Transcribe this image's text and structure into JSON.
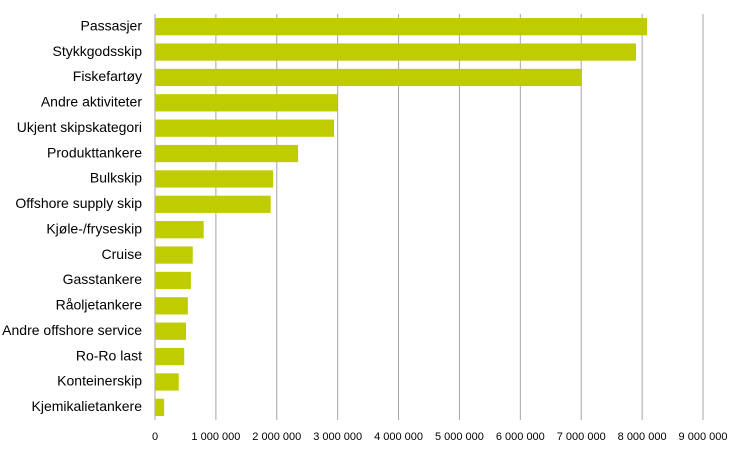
{
  "chart_data": {
    "type": "bar",
    "orientation": "horizontal",
    "categories": [
      "Passasjer",
      "Stykkgodsskip",
      "Fiskefartøy",
      "Andre aktiviteter",
      "Ukjent skipskategori",
      "Produkttankere",
      "Bulkskip",
      "Offshore supply skip",
      "Kjøle-/fryseskip",
      "Cruise",
      "Gasstankere",
      "Råoljetankere",
      "Andre offshore service",
      "Ro-Ro last",
      "Konteinerskip",
      "Kjemikalietankere"
    ],
    "values": [
      8080000,
      7900000,
      7010000,
      3000000,
      2940000,
      2350000,
      1940000,
      1900000,
      800000,
      620000,
      590000,
      540000,
      510000,
      480000,
      390000,
      150000
    ],
    "color": "#bfcc00",
    "xlim": [
      0,
      9000000
    ],
    "xticks": [
      0,
      {
        "value": 1000000,
        "label": "1 000 000"
      },
      {
        "value": 2000000,
        "label": "2 000 000"
      },
      {
        "value": 3000000,
        "label": "3 000 000"
      },
      {
        "value": 4000000,
        "label": "4 000 000"
      },
      {
        "value": 5000000,
        "label": "5 000 000"
      },
      {
        "value": 6000000,
        "label": "6 000 000"
      },
      {
        "value": 7000000,
        "label": "7 000 000"
      },
      {
        "value": 8000000,
        "label": "8 000 000"
      },
      {
        "value": 9000000,
        "label": "9 000 000"
      }
    ],
    "grid": true
  }
}
